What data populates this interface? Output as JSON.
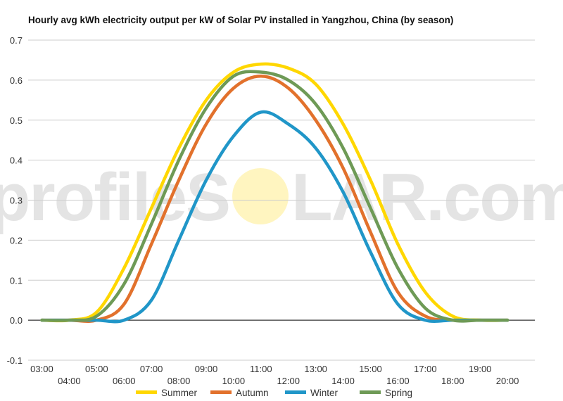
{
  "chart_data": {
    "type": "line",
    "title": "Hourly avg kWh electricity output per kW of Solar PV installed in Yangzhou, China (by season)",
    "xlabel": "",
    "ylabel": "",
    "ylim": [
      -0.1,
      0.7
    ],
    "yticks": [
      "-0.1",
      "0.0",
      "0.1",
      "0.2",
      "0.3",
      "0.4",
      "0.5",
      "0.6",
      "0.7"
    ],
    "x_range_hours": [
      2.5,
      21
    ],
    "xticks_top": [
      "03:00",
      "05:00",
      "07:00",
      "09:00",
      "11:00",
      "13:00",
      "15:00",
      "17:00",
      "19:00"
    ],
    "xticks_bottom": [
      "04:00",
      "06:00",
      "08:00",
      "10:00",
      "12:00",
      "14:00",
      "16:00",
      "18:00",
      "20:00"
    ],
    "grid": true,
    "legend_position": "bottom",
    "watermark": {
      "left": "profileS",
      "sun": "O",
      "right": "LAR.com"
    },
    "series": [
      {
        "name": "Summer",
        "color": "#ffd700",
        "x": [
          3,
          4,
          5,
          6,
          7,
          8,
          9,
          10,
          11,
          12,
          13,
          14,
          15,
          16,
          17,
          18,
          19,
          20
        ],
        "values": [
          0,
          0,
          0.02,
          0.13,
          0.28,
          0.43,
          0.55,
          0.62,
          0.64,
          0.63,
          0.59,
          0.49,
          0.35,
          0.19,
          0.07,
          0.01,
          0,
          0
        ]
      },
      {
        "name": "Autumn",
        "color": "#e2712c",
        "x": [
          3,
          4,
          5,
          6,
          7,
          8,
          9,
          10,
          11,
          12,
          13,
          14,
          15,
          16,
          17,
          18,
          19,
          20
        ],
        "values": [
          0,
          0,
          0,
          0.04,
          0.19,
          0.35,
          0.49,
          0.58,
          0.61,
          0.58,
          0.5,
          0.38,
          0.22,
          0.07,
          0.01,
          0,
          0,
          0
        ]
      },
      {
        "name": "Winter",
        "color": "#2096c8",
        "x": [
          3,
          4,
          5,
          6,
          7,
          8,
          9,
          10,
          11,
          12,
          13,
          14,
          15,
          16,
          17,
          18,
          19,
          20
        ],
        "values": [
          0,
          0,
          0,
          0,
          0.05,
          0.2,
          0.35,
          0.46,
          0.52,
          0.49,
          0.43,
          0.32,
          0.17,
          0.04,
          0,
          0,
          0,
          0
        ]
      },
      {
        "name": "Spring",
        "color": "#6e9a56",
        "x": [
          3,
          4,
          5,
          6,
          7,
          8,
          9,
          10,
          11,
          12,
          13,
          14,
          15,
          16,
          17,
          18,
          19,
          20
        ],
        "values": [
          0,
          0,
          0.01,
          0.09,
          0.24,
          0.4,
          0.53,
          0.61,
          0.62,
          0.6,
          0.54,
          0.43,
          0.28,
          0.13,
          0.03,
          0,
          0,
          0
        ]
      }
    ]
  }
}
